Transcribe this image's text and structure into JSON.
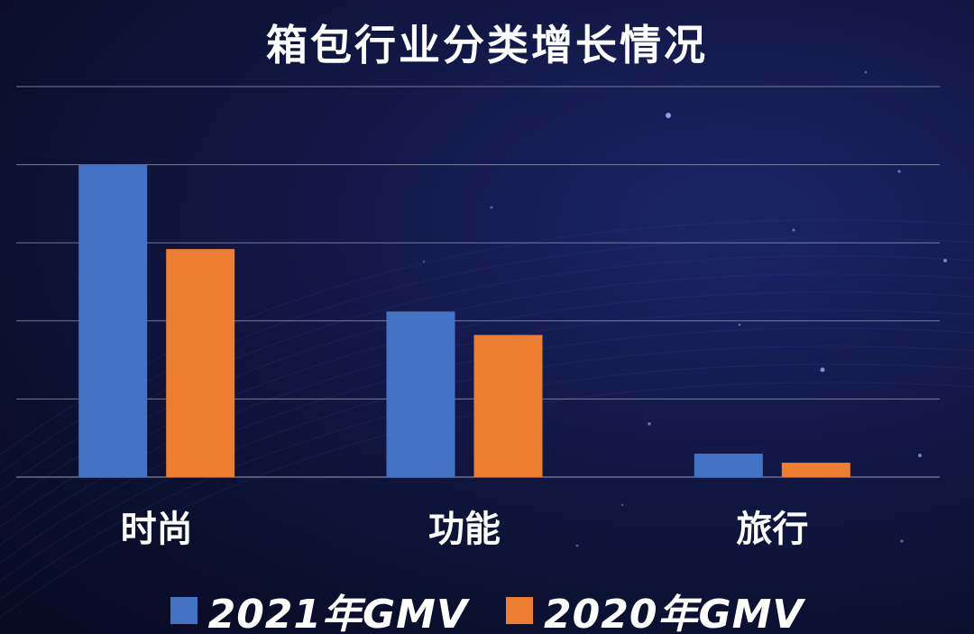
{
  "chart_data": {
    "type": "bar",
    "title": "箱包行业分类增长情况",
    "categories": [
      "时尚",
      "功能",
      "旅行"
    ],
    "series": [
      {
        "name": "2021年GMV",
        "color": "#4472c4",
        "values": [
          100,
          53,
          7.5
        ]
      },
      {
        "name": "2020年GMV",
        "color": "#ed7d31",
        "values": [
          73,
          45.5,
          4.6
        ]
      }
    ],
    "ylim": [
      0,
      125
    ],
    "grid": true,
    "y_tick_step": 25,
    "legend_position": "bottom"
  }
}
